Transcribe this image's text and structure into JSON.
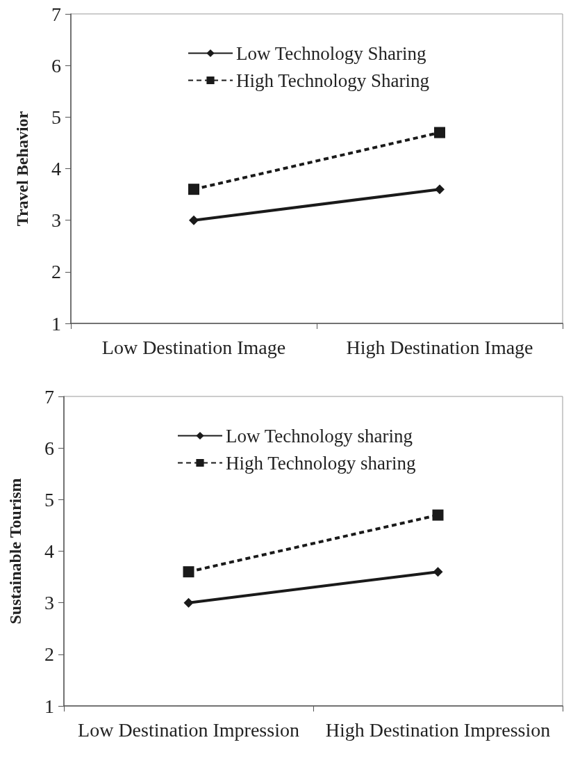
{
  "chart_data": [
    {
      "type": "line",
      "ylabel": "Travel Behavior",
      "categories": [
        "Low Destination Image",
        "High Destination Image"
      ],
      "series": [
        {
          "name": "Low Technology Sharing",
          "color": "#1a1a1a",
          "values": [
            3.0,
            3.6
          ],
          "marker": "diamond",
          "line_style": "solid"
        },
        {
          "name": "High Technology Sharing",
          "color": "#1a1a1a",
          "values": [
            3.6,
            4.7
          ],
          "marker": "square",
          "line_style": "dashed"
        }
      ],
      "ylim": [
        1,
        7
      ],
      "yticks": [
        1,
        2,
        3,
        4,
        5,
        6,
        7
      ],
      "grid": false,
      "legend": "top"
    },
    {
      "type": "line",
      "ylabel": "Sustainable Tourism",
      "categories": [
        "Low Destination Impression",
        "High Destination Impression"
      ],
      "series": [
        {
          "name": "Low Technology sharing",
          "color": "#1a1a1a",
          "values": [
            3.0,
            3.6
          ],
          "marker": "diamond",
          "line_style": "solid"
        },
        {
          "name": "High Technology sharing",
          "color": "#1a1a1a",
          "values": [
            3.6,
            4.7
          ],
          "marker": "square",
          "line_style": "dashed"
        }
      ],
      "ylim": [
        1,
        7
      ],
      "yticks": [
        1,
        2,
        3,
        4,
        5,
        6,
        7
      ],
      "grid": false,
      "legend": "top"
    }
  ]
}
